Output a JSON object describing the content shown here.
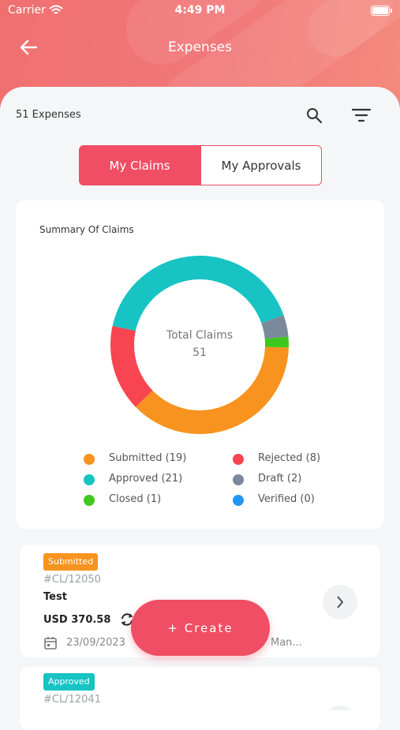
{
  "status_bar": {
    "carrier": "Carrier",
    "time": "4:49 PM"
  },
  "header": {
    "title": "Expenses"
  },
  "toolbar": {
    "count": "51 Expenses"
  },
  "tabs": [
    "My Claims",
    "My Approvals"
  ],
  "chart_data": {
    "type": "donut",
    "title": "Summary Of Claims",
    "categories": [
      "Submitted (19)",
      "Rejected (8)",
      "Approved (21)",
      "Draft (2)",
      "Closed (1)",
      "Verified (0)"
    ],
    "values": [
      19,
      8,
      21,
      2,
      1,
      0
    ],
    "colors": [
      "#f7931e",
      "#f94452",
      "#17c3c3",
      "#7a8a9a",
      "#3ec81e",
      "#2196f3"
    ],
    "center_label": "Total Claims",
    "center_value": "51"
  },
  "expenses": [
    {
      "status": "Submitted",
      "id": "#CL/12050",
      "name": "Test",
      "amount": "USD 370.58",
      "date": "23/09/2023",
      "owner": "Man..."
    },
    {
      "status": "Approved",
      "id": "#CL/12041"
    }
  ],
  "create_button": "+ Create"
}
